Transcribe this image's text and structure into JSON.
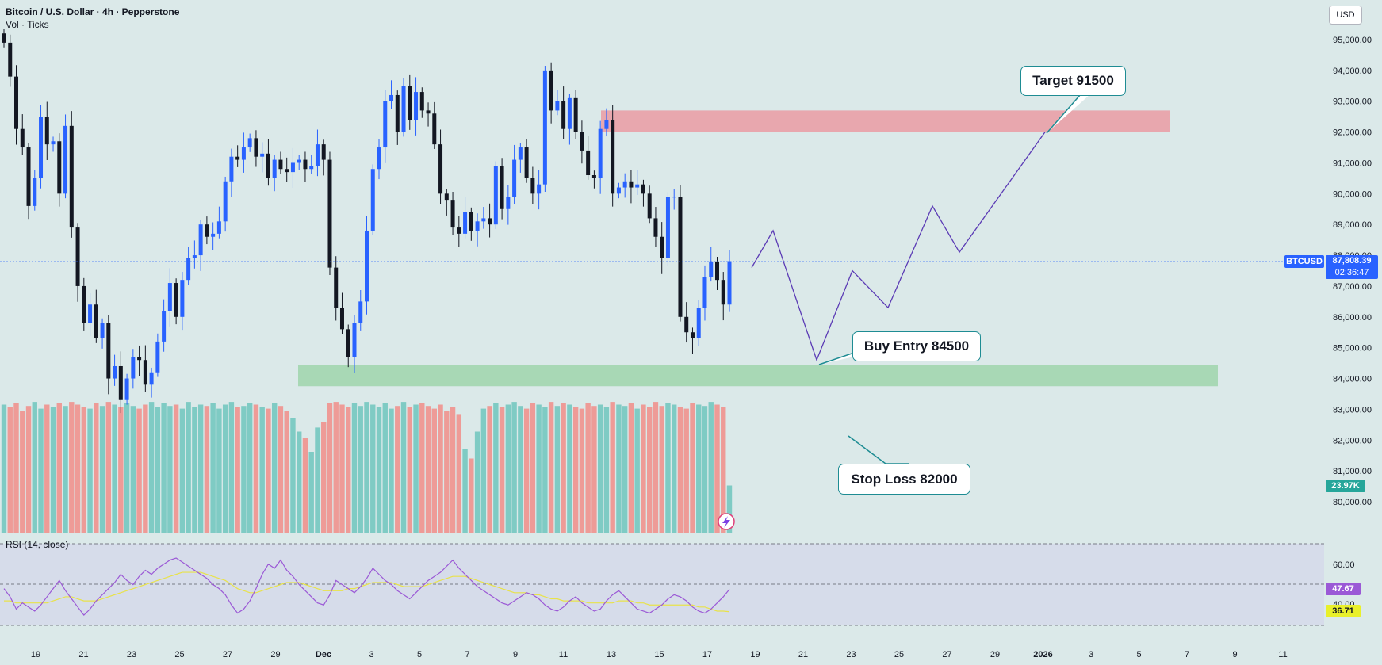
{
  "header": {
    "title": "Bitcoin / U.S. Dollar · 4h · Pepperstone",
    "subtitle": "Vol · Ticks"
  },
  "currency_button": "USD",
  "rsi": {
    "label": "RSI (14, close)",
    "value_label": "47.67",
    "ma_label": "36.71",
    "axis": [
      "60.00",
      "40.00"
    ]
  },
  "price_tag": {
    "symbol": "BTCUSD",
    "price": "87,808.39",
    "countdown": "02:36:47"
  },
  "volume_tag": "23.97K",
  "annotations": {
    "target": "Target 91500",
    "entry": "Buy Entry 84500",
    "stop": "Stop Loss  82000"
  },
  "colors": {
    "up": "#2962ff",
    "down": "#131722",
    "vol_up": "#7fcbc4",
    "vol_down": "#ee9b97",
    "target_zone": "#e8a7ae",
    "entry_zone": "#a8d8b5",
    "path": "#5b3bb5",
    "rsi_line": "#9b59d6",
    "rsi_ma": "#e8e24a"
  },
  "chart_data": {
    "type": "candlestick",
    "symbol": "BTCUSD",
    "timeframe": "4h",
    "price_axis": [
      "95,000.00",
      "94,000.00",
      "93,000.00",
      "92,000.00",
      "91,000.00",
      "90,000.00",
      "89,000.00",
      "88,000.00",
      "87,000.00",
      "86,000.00",
      "85,000.00",
      "84,000.00",
      "83,000.00",
      "82,000.00",
      "81,000.00",
      "80,000.00"
    ],
    "ylim": [
      79300,
      95900
    ],
    "time_axis": [
      "19",
      "21",
      "23",
      "25",
      "27",
      "29",
      "Dec",
      "3",
      "5",
      "7",
      "9",
      "11",
      "13",
      "15",
      "17",
      "19",
      "21",
      "23",
      "25",
      "27",
      "29",
      "2026",
      "3",
      "5",
      "7",
      "9",
      "11"
    ],
    "close_path": [
      94900,
      93800,
      92100,
      91500,
      89600,
      90500,
      92500,
      91600,
      91700,
      90000,
      92200,
      88900,
      87000,
      85800,
      86400,
      85300,
      85800,
      84000,
      84400,
      83300,
      84000,
      84700,
      84600,
      83800,
      84200,
      85200,
      86200,
      87100,
      86000,
      87200,
      87900,
      88000,
      89000,
      88600,
      88700,
      89100,
      90400,
      91200,
      91100,
      91500,
      91800,
      91200,
      91300,
      90500,
      91100,
      90800,
      90700,
      91000,
      91100,
      90800,
      90900,
      91600,
      91100,
      87600,
      86300,
      85600,
      84700,
      85800,
      86500,
      88800,
      90800,
      91500,
      93000,
      93200,
      92000,
      93500,
      92400,
      93300,
      92700,
      92600,
      91600,
      90000,
      89800,
      88900,
      88700,
      89400,
      88800,
      89100,
      89200,
      89000,
      90900,
      89500,
      89900,
      91100,
      91500,
      90500,
      90000,
      90300,
      94000,
      92700,
      93000,
      92100,
      93100,
      92000,
      91400,
      90600,
      90500,
      92100,
      92400,
      90000,
      90200,
      90400,
      90200,
      90300,
      90000,
      89200,
      88600,
      87900,
      89900,
      89900,
      86000,
      85500,
      85300,
      86300,
      87300,
      87800,
      87200,
      86400,
      87808
    ],
    "volume_relative": [
      0.95,
      0.93,
      0.96,
      0.9,
      0.94,
      0.97,
      0.92,
      0.95,
      0.93,
      0.96,
      0.94,
      0.97,
      0.95,
      0.93,
      0.92,
      0.96,
      0.94,
      0.97,
      0.95,
      0.93,
      0.96,
      0.94,
      0.92,
      0.95,
      0.97,
      0.93,
      0.96,
      0.94,
      0.95,
      0.92,
      0.97,
      0.93,
      0.95,
      0.94,
      0.96,
      0.92,
      0.95,
      0.97,
      0.93,
      0.94,
      0.96,
      0.95,
      0.93,
      0.92,
      0.96,
      0.94,
      0.9,
      0.85,
      0.75,
      0.7,
      0.6,
      0.78,
      0.82,
      0.96,
      0.97,
      0.95,
      0.93,
      0.96,
      0.94,
      0.97,
      0.95,
      0.93,
      0.96,
      0.92,
      0.94,
      0.97,
      0.93,
      0.95,
      0.96,
      0.94,
      0.92,
      0.95,
      0.9,
      0.93,
      0.88,
      0.62,
      0.55,
      0.75,
      0.92,
      0.94,
      0.96,
      0.93,
      0.95,
      0.97,
      0.94,
      0.92,
      0.96,
      0.95,
      0.93,
      0.97,
      0.94,
      0.96,
      0.95,
      0.93,
      0.92,
      0.96,
      0.94,
      0.95,
      0.93,
      0.97,
      0.95,
      0.94,
      0.96,
      0.92,
      0.95,
      0.93,
      0.97,
      0.94,
      0.96,
      0.95,
      0.93,
      0.92,
      0.96,
      0.95,
      0.94,
      0.97,
      0.95,
      0.93,
      0.35
    ],
    "zones": [
      {
        "name": "target zone",
        "from": 92000,
        "to": 92700
      },
      {
        "name": "entry zone",
        "from": 83750,
        "to": 84450
      }
    ],
    "projected_path": [
      87600,
      88800,
      84600,
      87500,
      86300,
      89600,
      88100,
      92000
    ],
    "rsi_values": [
      48,
      44,
      38,
      41,
      39,
      37,
      40,
      44,
      48,
      52,
      47,
      43,
      39,
      35,
      38,
      42,
      45,
      48,
      51,
      55,
      52,
      50,
      54,
      57,
      55,
      58,
      60,
      62,
      63,
      61,
      59,
      57,
      55,
      53,
      50,
      48,
      45,
      40,
      36,
      38,
      42,
      48,
      55,
      60,
      58,
      62,
      57,
      54,
      50,
      47,
      44,
      41,
      40,
      45,
      52,
      50,
      48,
      46,
      49,
      53,
      58,
      55,
      52,
      50,
      47,
      45,
      43,
      46,
      49,
      52,
      54,
      56,
      59,
      62,
      58,
      55,
      52,
      49,
      47,
      45,
      43,
      41,
      40,
      42,
      44,
      46,
      45,
      43,
      40,
      38,
      37,
      39,
      42,
      44,
      41,
      39,
      37,
      38,
      42,
      45,
      47,
      44,
      41,
      38,
      37,
      36,
      38,
      40,
      43,
      45,
      44,
      42,
      39,
      37,
      36,
      38,
      41,
      44,
      47.67
    ],
    "rsi_ma_values": [
      42,
      42,
      41,
      41,
      41,
      41,
      41,
      41,
      42,
      43,
      44,
      44,
      43,
      42,
      42,
      42,
      43,
      44,
      45,
      46,
      47,
      48,
      49,
      50,
      51,
      52,
      53,
      54,
      55,
      56,
      56,
      56,
      56,
      55,
      54,
      53,
      52,
      50,
      48,
      47,
      46,
      46,
      47,
      48,
      49,
      50,
      51,
      51,
      51,
      50,
      49,
      48,
      47,
      47,
      47,
      47,
      48,
      48,
      49,
      50,
      51,
      51,
      51,
      51,
      50,
      49,
      49,
      49,
      49,
      50,
      51,
      52,
      53,
      54,
      54,
      54,
      53,
      52,
      51,
      50,
      49,
      48,
      47,
      46,
      46,
      46,
      45,
      45,
      44,
      43,
      43,
      42,
      42,
      42,
      42,
      41,
      41,
      41,
      41,
      41,
      42,
      42,
      42,
      41,
      41,
      40,
      40,
      40,
      40,
      40,
      40,
      40,
      40,
      39,
      39,
      38,
      37,
      37,
      36.71
    ]
  }
}
